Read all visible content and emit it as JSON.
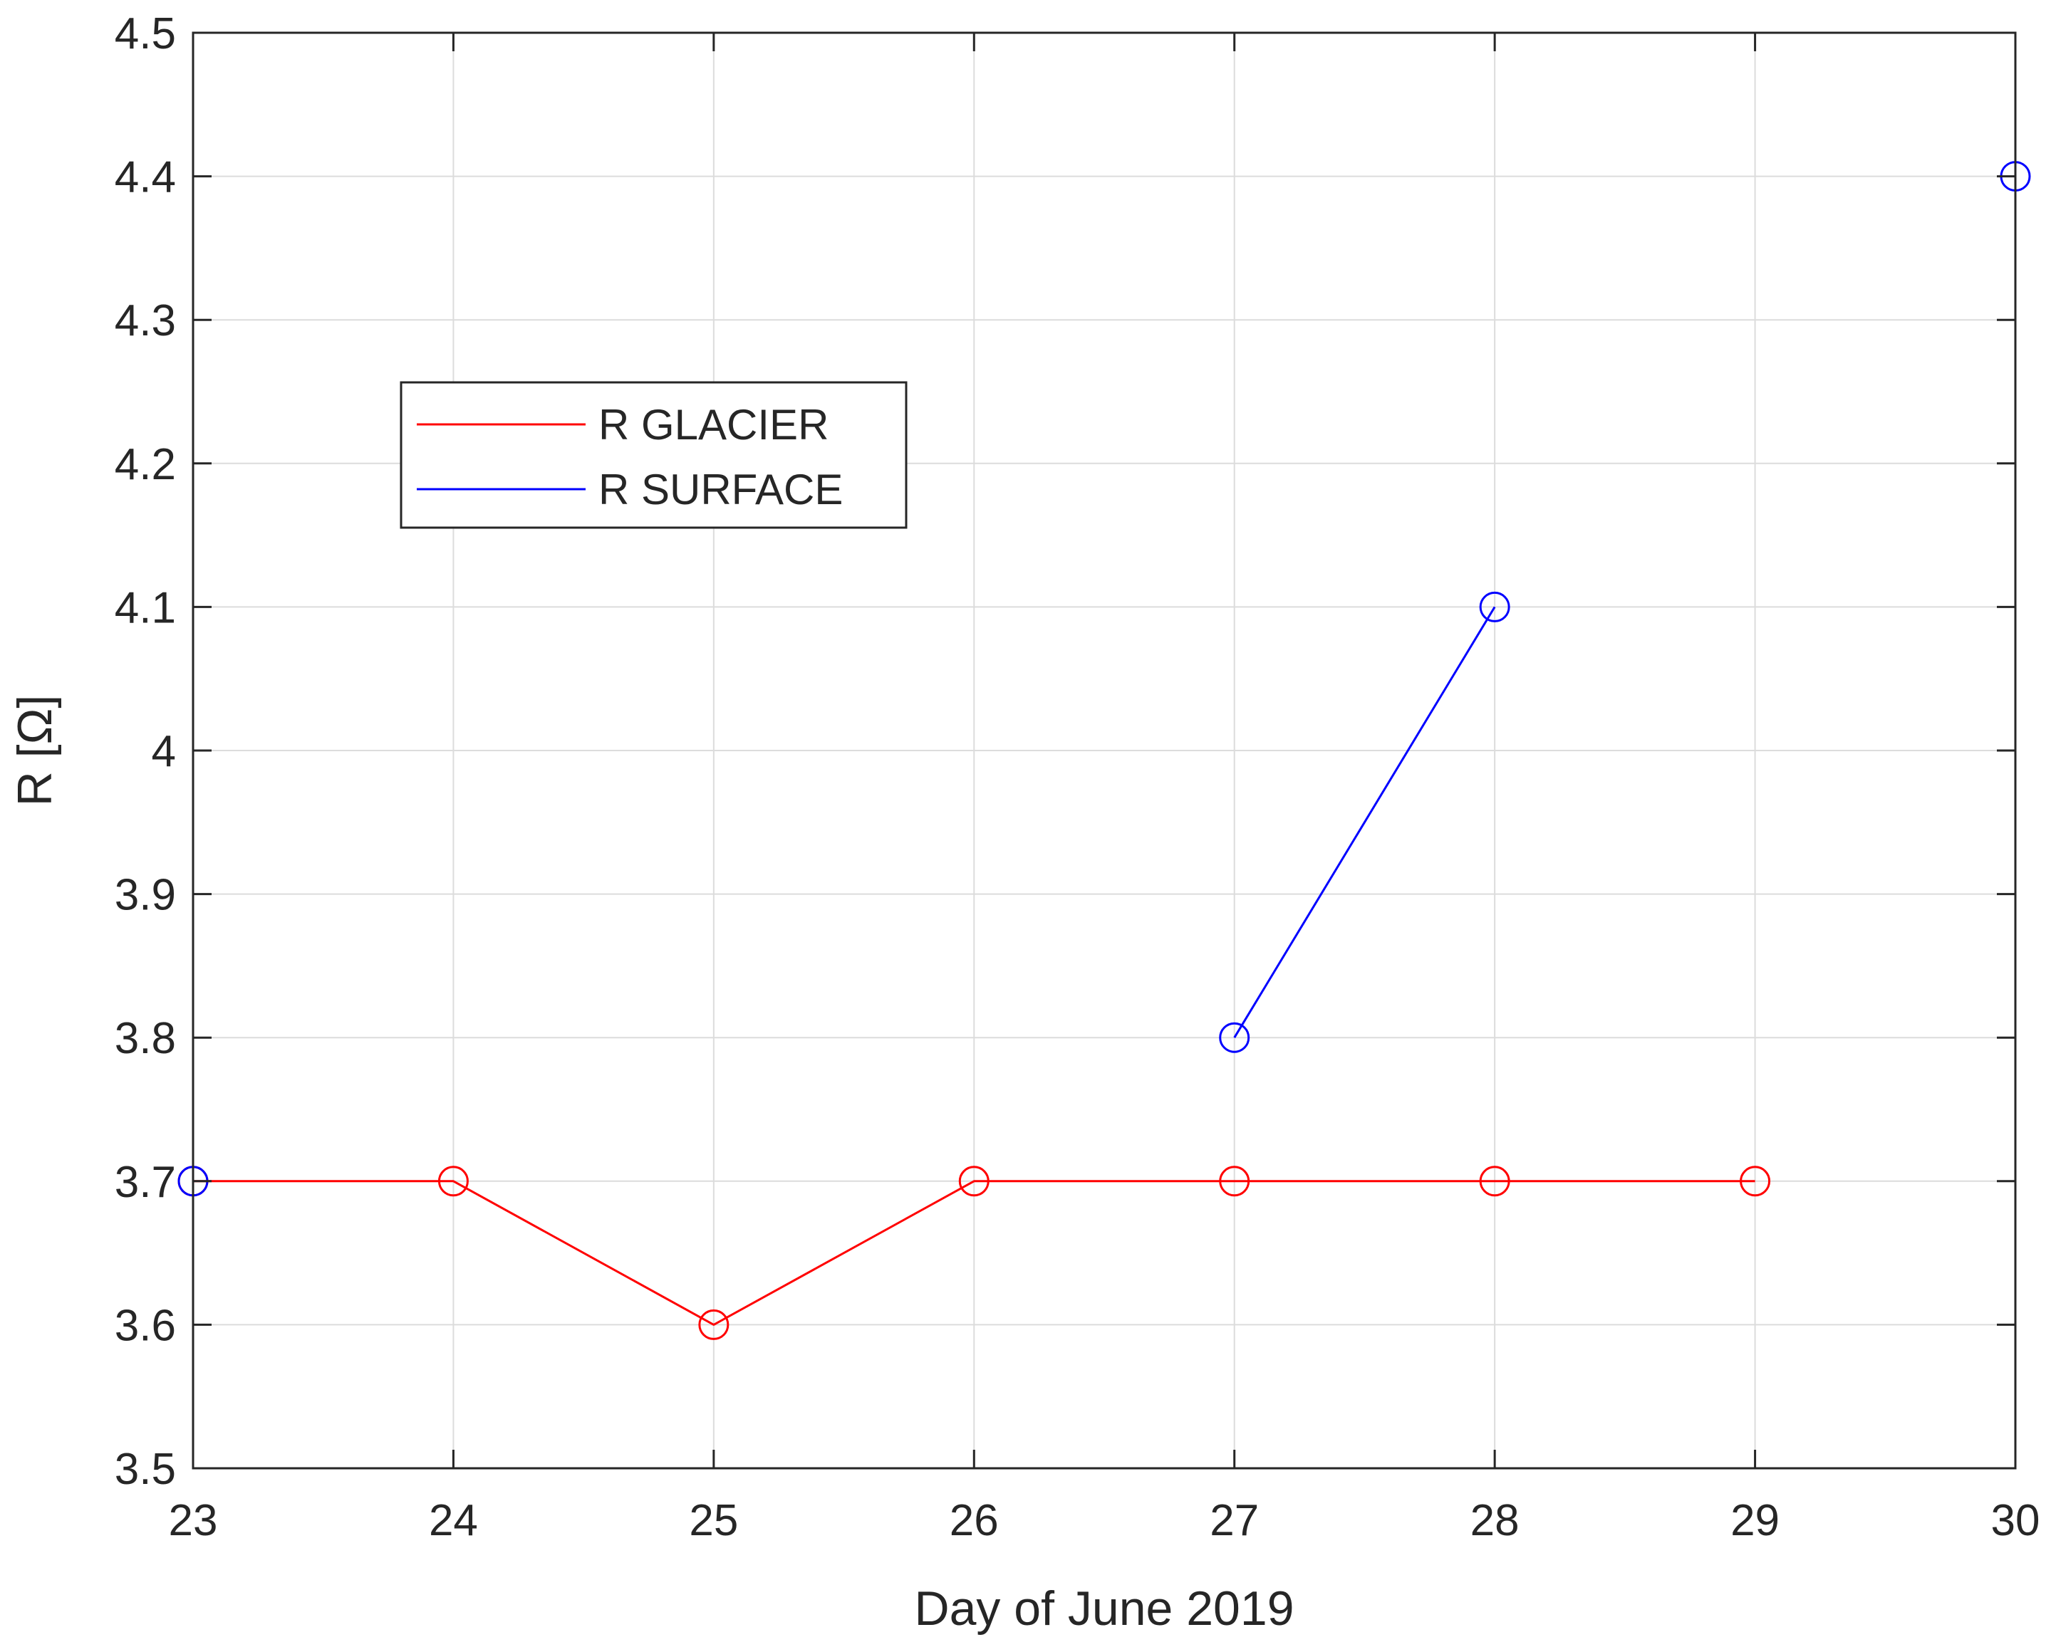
{
  "chart_data": {
    "type": "line",
    "title": "",
    "xlabel": "Day of June 2019",
    "ylabel": "R [Ω]",
    "xlim": [
      23,
      30
    ],
    "ylim": [
      3.5,
      4.5
    ],
    "x_ticks": [
      23,
      24,
      25,
      26,
      27,
      28,
      29,
      30
    ],
    "y_ticks": [
      3.5,
      3.6,
      3.7,
      3.8,
      3.9,
      4,
      4.1,
      4.2,
      4.3,
      4.4,
      4.5
    ],
    "x_tick_labels": [
      "23",
      "24",
      "25",
      "26",
      "27",
      "28",
      "29",
      "30"
    ],
    "y_tick_labels": [
      "3.5",
      "3.6",
      "3.7",
      "3.8",
      "3.9",
      "4",
      "4.1",
      "4.2",
      "4.3",
      "4.4",
      "4.5"
    ],
    "grid": true,
    "legend_position": "upper-left",
    "series": [
      {
        "name": "R GLACIER",
        "color": "#ff0000",
        "marker": "circle",
        "x": [
          23,
          24,
          25,
          26,
          27,
          28,
          29
        ],
        "y": [
          3.7,
          3.7,
          3.6,
          3.7,
          3.7,
          3.7,
          3.7
        ]
      },
      {
        "name": "R SURFACE",
        "color": "#0000ff",
        "marker": "circle",
        "x": [
          23,
          27,
          28,
          30
        ],
        "y": [
          3.7,
          3.8,
          4.1,
          4.4
        ],
        "segments": [
          [
            23
          ],
          [
            27,
            28
          ],
          [
            30
          ]
        ]
      }
    ]
  }
}
